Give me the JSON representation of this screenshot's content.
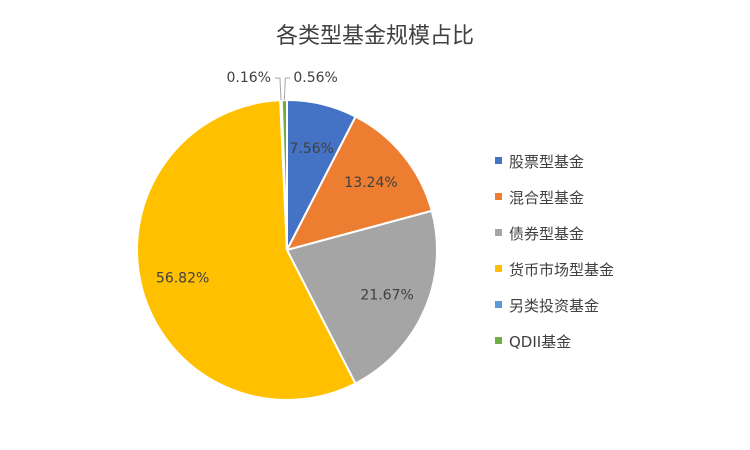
{
  "chart_data": {
    "type": "pie",
    "title": "各类型基金规模占比",
    "categories": [
      "股票型基金",
      "混合型基金",
      "债券型基金",
      "货币市场型基金",
      "另类投资基金",
      "QDII基金"
    ],
    "values": [
      7.56,
      13.24,
      21.67,
      56.82,
      0.16,
      0.56
    ],
    "value_labels": [
      "7.56%",
      "13.24%",
      "21.67%",
      "56.82%",
      "0.16%",
      "0.56%"
    ],
    "colors": [
      "#4472C4",
      "#ED7D31",
      "#A5A5A5",
      "#FFC000",
      "#5B9BD5",
      "#70AD47"
    ],
    "legend_position": "right"
  }
}
